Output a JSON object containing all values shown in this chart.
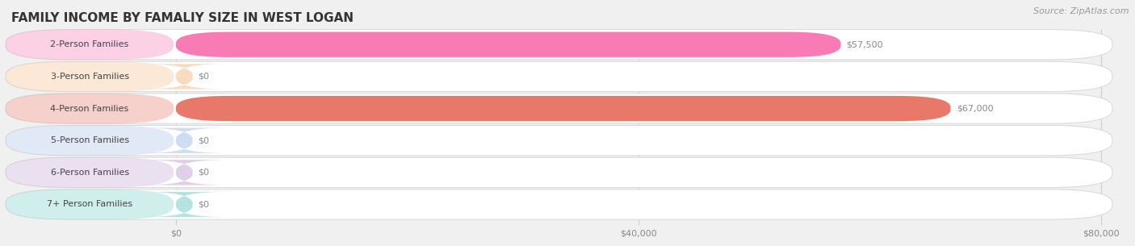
{
  "title": "FAMILY INCOME BY FAMALIY SIZE IN WEST LOGAN",
  "source": "Source: ZipAtlas.com",
  "categories": [
    "2-Person Families",
    "3-Person Families",
    "4-Person Families",
    "5-Person Families",
    "6-Person Families",
    "7+ Person Families"
  ],
  "values": [
    57500,
    0,
    67000,
    0,
    0,
    0
  ],
  "bar_colors": [
    "#F97BB5",
    "#F5BE8A",
    "#E8796A",
    "#A9C2E8",
    "#C5A8D6",
    "#76CFCA"
  ],
  "xlim_max": 80000,
  "xticks": [
    0,
    40000,
    80000
  ],
  "xtick_labels": [
    "$0",
    "$40,000",
    "$80,000"
  ],
  "background_color": "#f0f0f0",
  "row_bg_color": "#ffffff",
  "row_border_color": "#d8d8d8",
  "title_fontsize": 11,
  "source_fontsize": 8,
  "label_fontsize": 8,
  "value_label_fontsize": 8
}
